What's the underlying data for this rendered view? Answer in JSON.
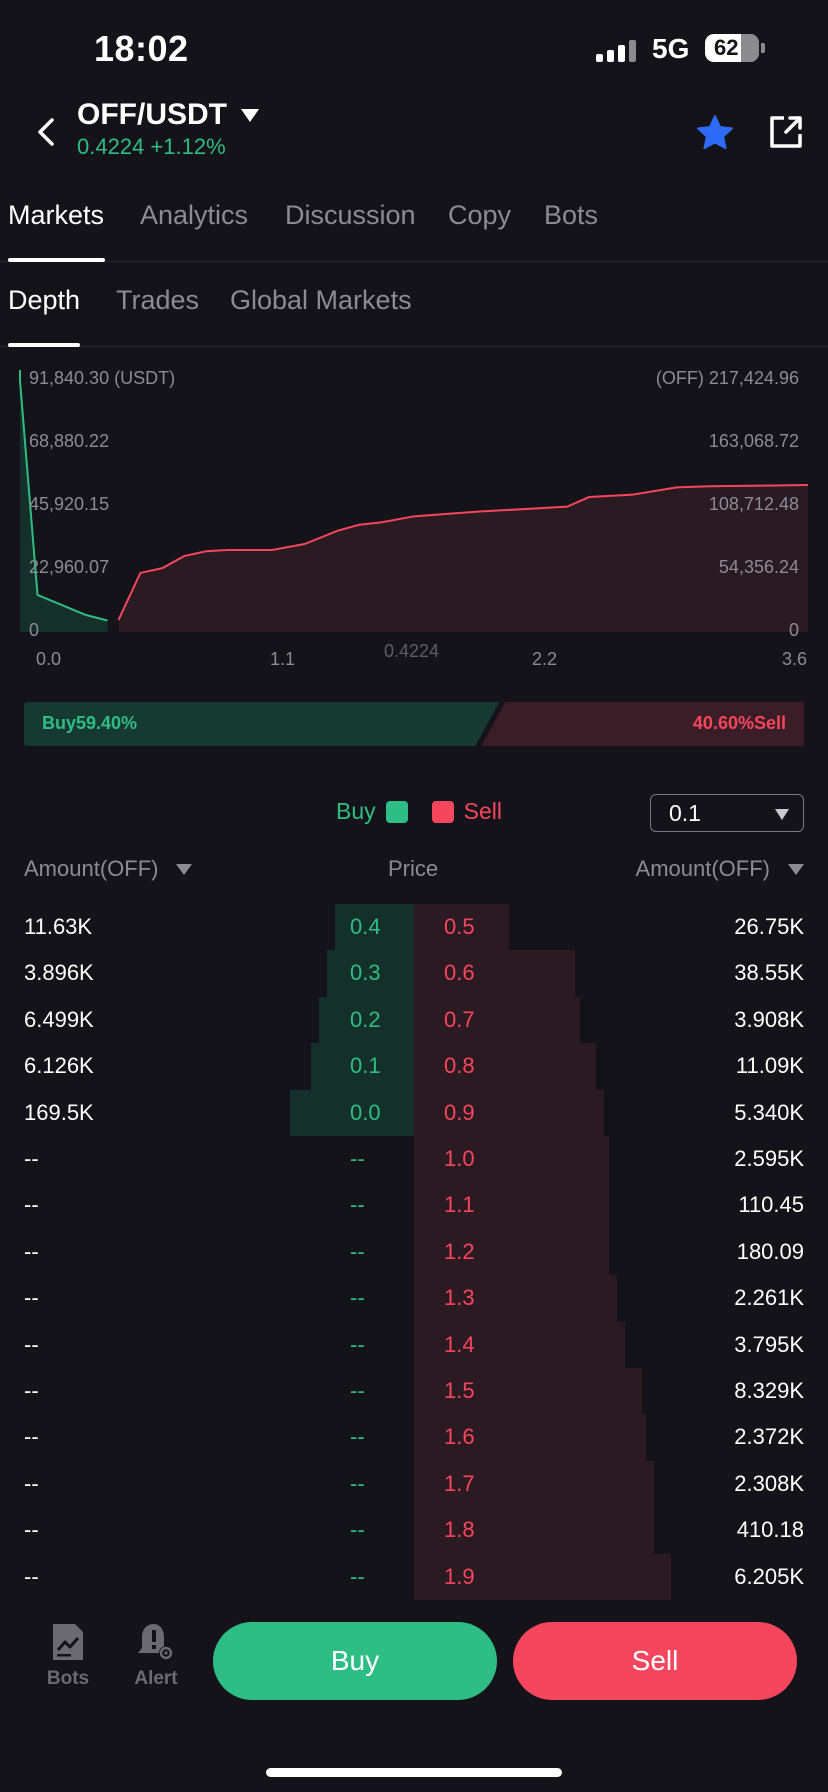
{
  "status": {
    "time": "18:02",
    "network": "5G",
    "battery": "62"
  },
  "header": {
    "pair": "OFF/USDT",
    "price_change": "0.4224 +1.12%"
  },
  "tabs": [
    "Markets",
    "Analytics",
    "Discussion",
    "Copy",
    "Bots"
  ],
  "subtabs": [
    "Depth",
    "Trades",
    "Global Markets"
  ],
  "depth_chart": {
    "left_top": "91,840.30 (USDT)",
    "right_top": "(OFF) 217,424.96",
    "left_ticks": [
      "68,880.22",
      "45,920.15",
      "22,960.07",
      "0"
    ],
    "right_ticks": [
      "163,068.72",
      "108,712.48",
      "54,356.24",
      "0"
    ],
    "x_ticks": [
      "0.0",
      "1.1",
      "2.2",
      "3.6"
    ],
    "mid_price": "0.4224"
  },
  "chart_data": {
    "type": "area",
    "xlim": [
      0,
      3.6
    ],
    "y_left_lim": [
      0,
      91840.3
    ],
    "y_right_lim": [
      0,
      217424.96
    ],
    "series": [
      {
        "name": "Buy",
        "axis": "left",
        "x": [
          0.0,
          0.0,
          0.08,
          0.3,
          0.4
        ],
        "y": [
          91840.3,
          88000,
          13000,
          6000,
          4000
        ]
      },
      {
        "name": "Sell",
        "axis": "right",
        "x": [
          0.45,
          0.55,
          0.65,
          0.75,
          0.85,
          0.95,
          1.05,
          1.15,
          1.3,
          1.45,
          1.55,
          1.65,
          1.8,
          1.95,
          2.1,
          2.3,
          2.5,
          2.6,
          2.8,
          3.0,
          3.15,
          3.4,
          3.6
        ],
        "y": [
          10000,
          49000,
          53000,
          63000,
          67000,
          68000,
          68000,
          68000,
          73000,
          84000,
          89000,
          91000,
          96000,
          98000,
          100000,
          102000,
          104000,
          112000,
          114000,
          120000,
          121000,
          121500,
          122000
        ]
      }
    ]
  },
  "ratio": {
    "buy_label": "Buy59.40%",
    "sell_label": "40.60%Sell",
    "buy_fraction": 0.594
  },
  "legend": {
    "buy": "Buy",
    "sell": "Sell",
    "buy_color": "#2ebd85",
    "sell_color": "#f6465d"
  },
  "precision": {
    "value": "0.1"
  },
  "orderbook": {
    "header": {
      "left": "Amount(OFF)",
      "center": "Price",
      "right": "Amount(OFF)"
    },
    "rows": [
      {
        "bid_amount": "11.63K",
        "bid_price": "0.4",
        "ask_price": "0.5",
        "ask_amount": "26.75K",
        "bid_depth": 0.19,
        "ask_depth": 0.23
      },
      {
        "bid_amount": "3.896K",
        "bid_price": "0.3",
        "ask_price": "0.6",
        "ask_amount": "38.55K",
        "bid_depth": 0.21,
        "ask_depth": 0.39
      },
      {
        "bid_amount": "6.499K",
        "bid_price": "0.2",
        "ask_price": "0.7",
        "ask_amount": "3.908K",
        "bid_depth": 0.23,
        "ask_depth": 0.4
      },
      {
        "bid_amount": "6.126K",
        "bid_price": "0.1",
        "ask_price": "0.8",
        "ask_amount": "11.09K",
        "bid_depth": 0.25,
        "ask_depth": 0.44
      },
      {
        "bid_amount": "169.5K",
        "bid_price": "0.0",
        "ask_price": "0.9",
        "ask_amount": "5.340K",
        "bid_depth": 0.3,
        "ask_depth": 0.46
      },
      {
        "bid_amount": "--",
        "bid_price": "--",
        "ask_price": "1.0",
        "ask_amount": "2.595K",
        "bid_depth": 0,
        "ask_depth": 0.47
      },
      {
        "bid_amount": "--",
        "bid_price": "--",
        "ask_price": "1.1",
        "ask_amount": "110.45",
        "bid_depth": 0,
        "ask_depth": 0.47
      },
      {
        "bid_amount": "--",
        "bid_price": "--",
        "ask_price": "1.2",
        "ask_amount": "180.09",
        "bid_depth": 0,
        "ask_depth": 0.47
      },
      {
        "bid_amount": "--",
        "bid_price": "--",
        "ask_price": "1.3",
        "ask_amount": "2.261K",
        "bid_depth": 0,
        "ask_depth": 0.49
      },
      {
        "bid_amount": "--",
        "bid_price": "--",
        "ask_price": "1.4",
        "ask_amount": "3.795K",
        "bid_depth": 0,
        "ask_depth": 0.51
      },
      {
        "bid_amount": "--",
        "bid_price": "--",
        "ask_price": "1.5",
        "ask_amount": "8.329K",
        "bid_depth": 0,
        "ask_depth": 0.55
      },
      {
        "bid_amount": "--",
        "bid_price": "--",
        "ask_price": "1.6",
        "ask_amount": "2.372K",
        "bid_depth": 0,
        "ask_depth": 0.56
      },
      {
        "bid_amount": "--",
        "bid_price": "--",
        "ask_price": "1.7",
        "ask_amount": "2.308K",
        "bid_depth": 0,
        "ask_depth": 0.58
      },
      {
        "bid_amount": "--",
        "bid_price": "--",
        "ask_price": "1.8",
        "ask_amount": "410.18",
        "bid_depth": 0,
        "ask_depth": 0.58
      },
      {
        "bid_amount": "--",
        "bid_price": "--",
        "ask_price": "1.9",
        "ask_amount": "6.205K",
        "bid_depth": 0,
        "ask_depth": 0.62
      }
    ]
  },
  "bottom": {
    "bots": "Bots",
    "alert": "Alert",
    "buy": "Buy",
    "sell": "Sell"
  }
}
